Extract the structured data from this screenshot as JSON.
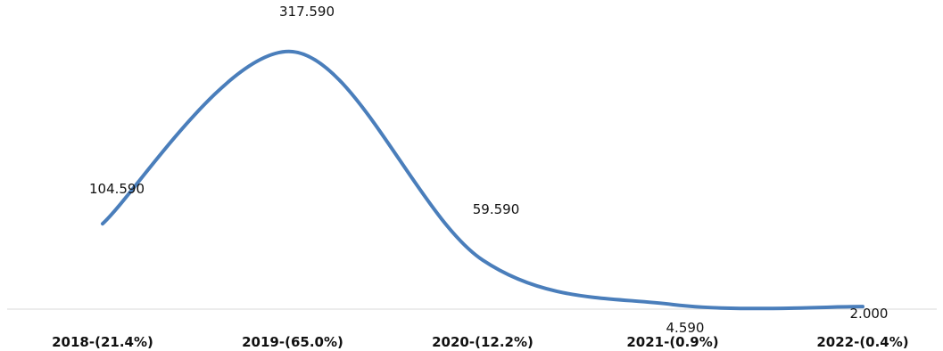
{
  "chart_data": {
    "type": "line",
    "title": "",
    "xlabel": "",
    "ylabel": "",
    "categories": [
      "2018-(21.4%)",
      "2019-(65.0%)",
      "2020-(12.2%)",
      "2021-(0.9%)",
      "2022-(0.4%)"
    ],
    "series": [
      {
        "values": [
          104.59,
          317.59,
          59.59,
          4.59,
          2.0
        ],
        "labels": [
          "104.590",
          "317.590",
          "59.590",
          "4.590",
          "2.000"
        ],
        "color": "#4a7ebb"
      }
    ],
    "smoothed": true,
    "grid": false,
    "legend": "none",
    "axis_color": "#d9d9d9"
  }
}
